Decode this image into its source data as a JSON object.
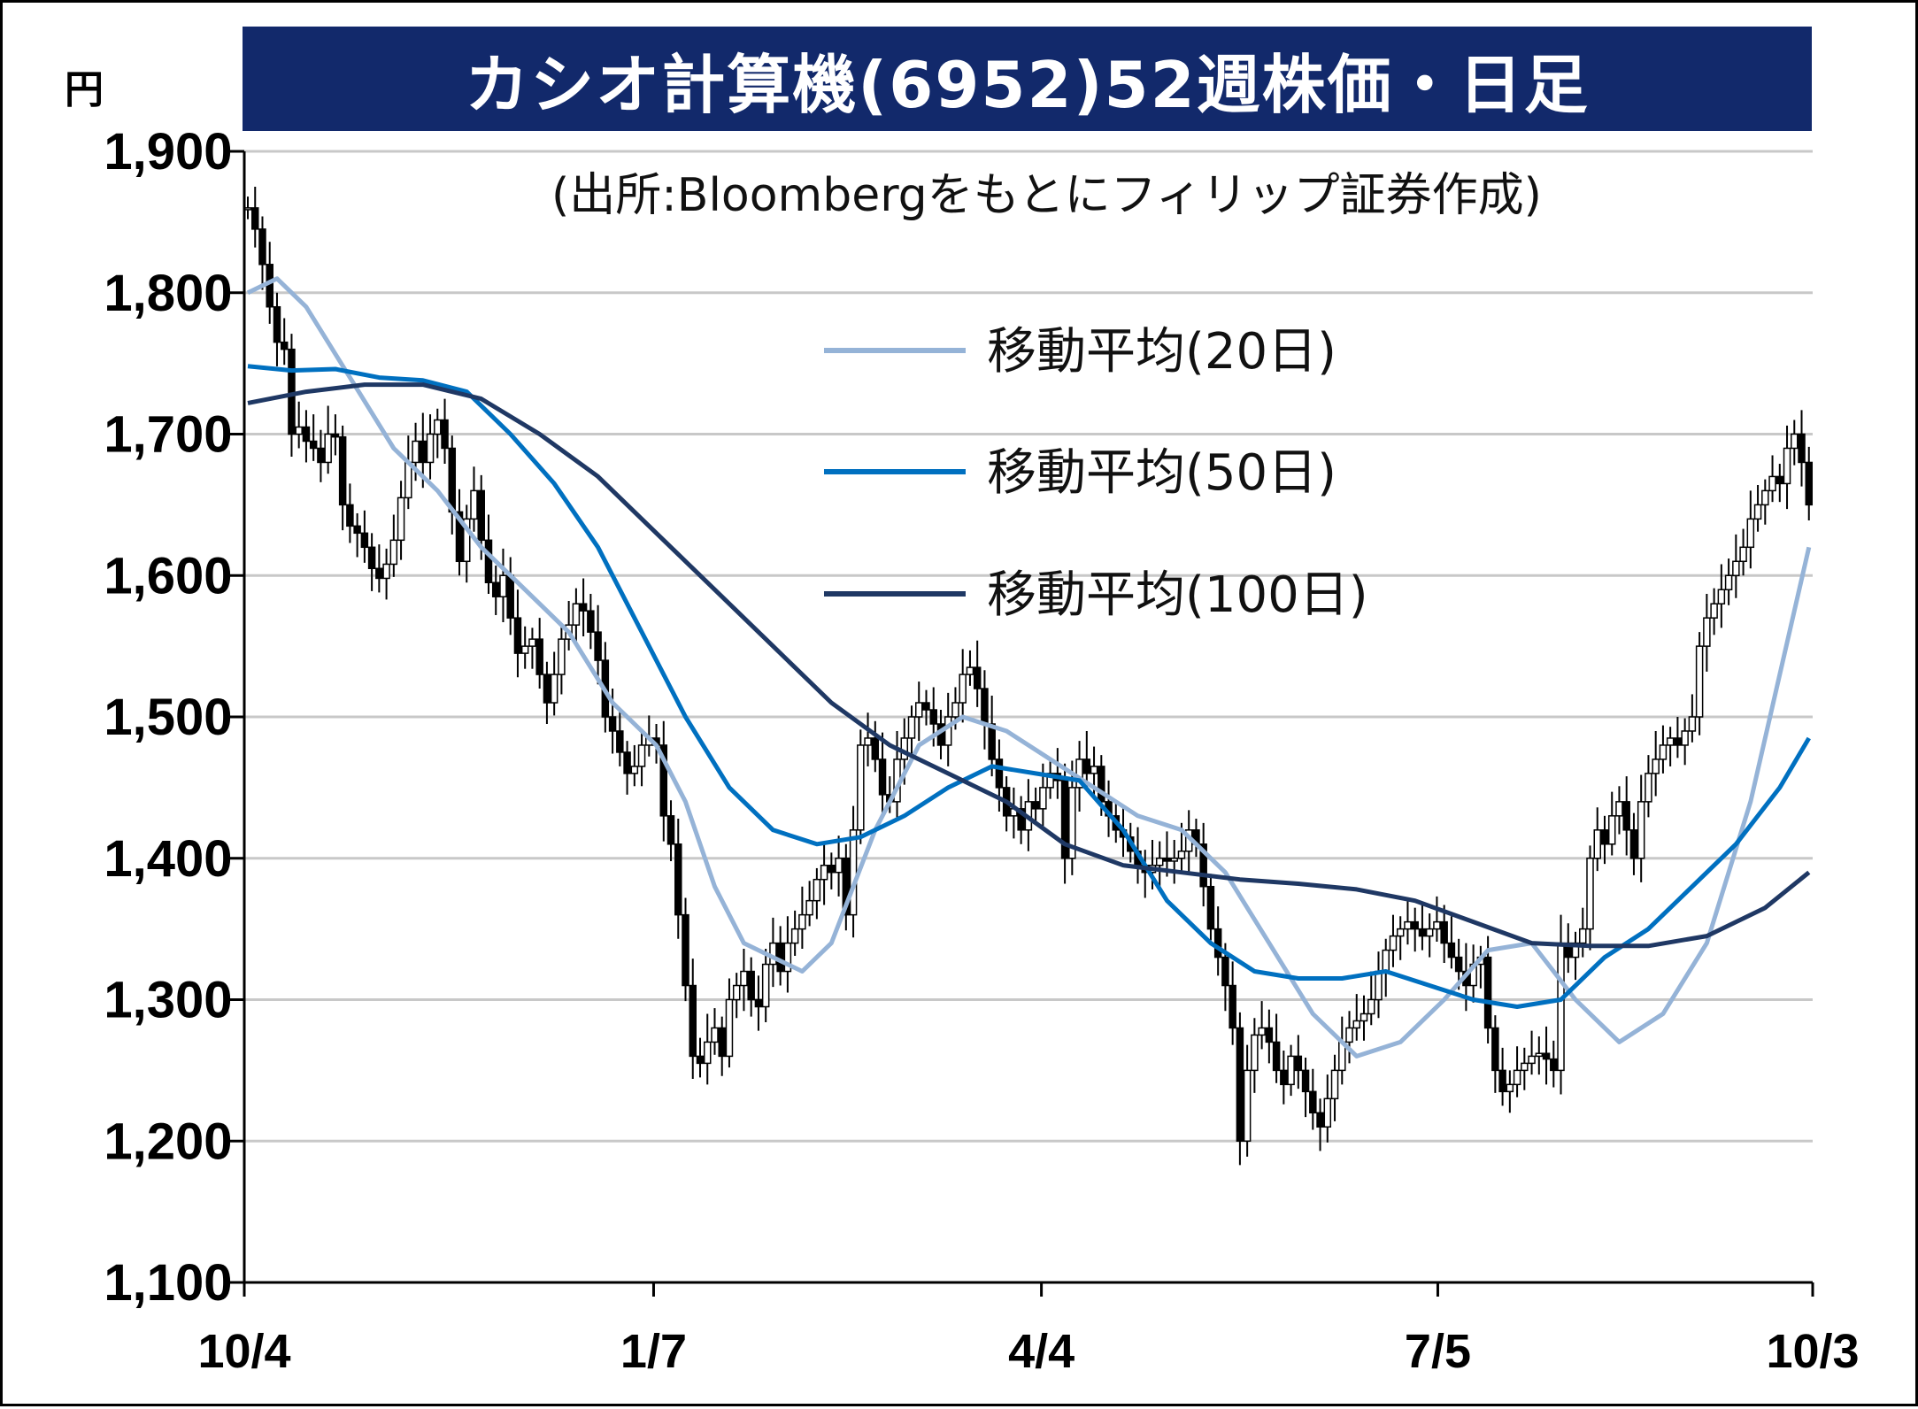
{
  "chart_data": {
    "type": "line",
    "title": "カシオ計算機(6952)52週株価・日足",
    "subtitle": "(出所:Bloombergをもとにフィリップ証券作成)",
    "unit": "円",
    "ylim": [
      1100,
      1900
    ],
    "yticks": [
      "1,100",
      "1,200",
      "1,300",
      "1,400",
      "1,500",
      "1,600",
      "1,700",
      "1,800",
      "1,900"
    ],
    "ytick_values": [
      1100,
      1200,
      1300,
      1400,
      1500,
      1600,
      1700,
      1800,
      1900
    ],
    "xticks": [
      "10/4",
      "1/7",
      "4/4",
      "7/5",
      "10/3"
    ],
    "xtick_days": [
      0,
      95,
      185,
      277,
      364
    ],
    "grid": true,
    "legend_placement": "top-center",
    "candles_close_approx": [
      [
        0,
        1860
      ],
      [
        1,
        1845
      ],
      [
        2,
        1820
      ],
      [
        3,
        1790
      ],
      [
        4,
        1765
      ],
      [
        5,
        1760
      ],
      [
        6,
        1700
      ],
      [
        7,
        1705
      ],
      [
        8,
        1695
      ],
      [
        9,
        1690
      ],
      [
        10,
        1680
      ],
      [
        11,
        1700
      ],
      [
        12,
        1698
      ],
      [
        13,
        1650
      ],
      [
        14,
        1635
      ],
      [
        15,
        1630
      ],
      [
        16,
        1620
      ],
      [
        17,
        1605
      ],
      [
        18,
        1598
      ],
      [
        19,
        1608
      ],
      [
        20,
        1625
      ],
      [
        21,
        1655
      ],
      [
        22,
        1680
      ],
      [
        23,
        1695
      ],
      [
        24,
        1680
      ],
      [
        25,
        1700
      ],
      [
        26,
        1710
      ],
      [
        27,
        1690
      ],
      [
        28,
        1645
      ],
      [
        29,
        1610
      ],
      [
        30,
        1640
      ],
      [
        31,
        1660
      ],
      [
        32,
        1625
      ],
      [
        33,
        1595
      ],
      [
        34,
        1585
      ],
      [
        35,
        1600
      ],
      [
        36,
        1570
      ],
      [
        37,
        1545
      ],
      [
        38,
        1550
      ],
      [
        39,
        1555
      ],
      [
        40,
        1530
      ],
      [
        41,
        1510
      ],
      [
        42,
        1530
      ],
      [
        43,
        1555
      ],
      [
        44,
        1565
      ],
      [
        45,
        1580
      ],
      [
        46,
        1575
      ],
      [
        47,
        1560
      ],
      [
        48,
        1540
      ],
      [
        49,
        1500
      ],
      [
        50,
        1490
      ],
      [
        51,
        1475
      ],
      [
        52,
        1460
      ],
      [
        53,
        1465
      ],
      [
        54,
        1480
      ],
      [
        55,
        1485
      ],
      [
        56,
        1480
      ],
      [
        57,
        1430
      ],
      [
        58,
        1410
      ],
      [
        59,
        1360
      ],
      [
        60,
        1310
      ],
      [
        61,
        1260
      ],
      [
        62,
        1255
      ],
      [
        63,
        1270
      ],
      [
        64,
        1280
      ],
      [
        65,
        1260
      ],
      [
        66,
        1300
      ],
      [
        67,
        1310
      ],
      [
        68,
        1320
      ],
      [
        69,
        1300
      ],
      [
        70,
        1295
      ],
      [
        71,
        1325
      ],
      [
        72,
        1340
      ],
      [
        73,
        1320
      ],
      [
        74,
        1340
      ],
      [
        75,
        1350
      ],
      [
        76,
        1360
      ],
      [
        77,
        1370
      ],
      [
        78,
        1385
      ],
      [
        79,
        1395
      ],
      [
        80,
        1390
      ],
      [
        81,
        1400
      ],
      [
        82,
        1360
      ],
      [
        83,
        1420
      ],
      [
        84,
        1480
      ],
      [
        85,
        1485
      ],
      [
        86,
        1470
      ],
      [
        87,
        1445
      ],
      [
        88,
        1440
      ],
      [
        89,
        1470
      ],
      [
        90,
        1485
      ],
      [
        91,
        1500
      ],
      [
        92,
        1510
      ],
      [
        93,
        1505
      ],
      [
        94,
        1495
      ],
      [
        95,
        1480
      ],
      [
        96,
        1500
      ],
      [
        97,
        1510
      ],
      [
        98,
        1530
      ],
      [
        99,
        1535
      ],
      [
        100,
        1520
      ],
      [
        101,
        1495
      ],
      [
        102,
        1470
      ],
      [
        103,
        1450
      ],
      [
        104,
        1430
      ],
      [
        105,
        1435
      ],
      [
        106,
        1420
      ],
      [
        107,
        1440
      ],
      [
        108,
        1435
      ],
      [
        109,
        1450
      ],
      [
        110,
        1460
      ],
      [
        111,
        1455
      ],
      [
        112,
        1400
      ],
      [
        113,
        1450
      ],
      [
        114,
        1470
      ],
      [
        115,
        1460
      ],
      [
        116,
        1465
      ],
      [
        117,
        1440
      ],
      [
        118,
        1430
      ],
      [
        119,
        1420
      ],
      [
        120,
        1415
      ],
      [
        121,
        1405
      ],
      [
        122,
        1395
      ],
      [
        123,
        1390
      ],
      [
        124,
        1395
      ],
      [
        125,
        1400
      ],
      [
        126,
        1398
      ],
      [
        127,
        1400
      ],
      [
        128,
        1405
      ],
      [
        129,
        1420
      ],
      [
        130,
        1410
      ],
      [
        131,
        1380
      ],
      [
        132,
        1350
      ],
      [
        133,
        1330
      ],
      [
        134,
        1310
      ],
      [
        135,
        1280
      ],
      [
        136,
        1200
      ],
      [
        137,
        1250
      ],
      [
        138,
        1275
      ],
      [
        139,
        1280
      ],
      [
        140,
        1270
      ],
      [
        141,
        1250
      ],
      [
        142,
        1240
      ],
      [
        143,
        1260
      ],
      [
        144,
        1250
      ],
      [
        145,
        1235
      ],
      [
        146,
        1220
      ],
      [
        147,
        1210
      ],
      [
        148,
        1230
      ],
      [
        149,
        1250
      ],
      [
        150,
        1270
      ],
      [
        151,
        1280
      ],
      [
        152,
        1285
      ],
      [
        153,
        1290
      ],
      [
        154,
        1300
      ],
      [
        155,
        1320
      ],
      [
        156,
        1335
      ],
      [
        157,
        1345
      ],
      [
        158,
        1350
      ],
      [
        159,
        1355
      ],
      [
        160,
        1350
      ],
      [
        161,
        1345
      ],
      [
        162,
        1350
      ],
      [
        163,
        1355
      ],
      [
        164,
        1340
      ],
      [
        165,
        1330
      ],
      [
        166,
        1320
      ],
      [
        167,
        1310
      ],
      [
        168,
        1325
      ],
      [
        169,
        1330
      ],
      [
        170,
        1280
      ],
      [
        171,
        1250
      ],
      [
        172,
        1235
      ],
      [
        173,
        1240
      ],
      [
        174,
        1250
      ],
      [
        175,
        1255
      ],
      [
        176,
        1260
      ],
      [
        177,
        1262
      ],
      [
        178,
        1258
      ],
      [
        179,
        1250
      ],
      [
        180,
        1340
      ],
      [
        181,
        1330
      ],
      [
        182,
        1340
      ],
      [
        183,
        1350
      ],
      [
        184,
        1400
      ],
      [
        185,
        1420
      ],
      [
        186,
        1410
      ],
      [
        187,
        1430
      ],
      [
        188,
        1440
      ],
      [
        189,
        1420
      ],
      [
        190,
        1400
      ],
      [
        191,
        1440
      ],
      [
        192,
        1460
      ],
      [
        193,
        1470
      ],
      [
        194,
        1480
      ],
      [
        195,
        1485
      ],
      [
        196,
        1480
      ],
      [
        197,
        1490
      ],
      [
        198,
        1500
      ],
      [
        199,
        1550
      ],
      [
        200,
        1570
      ],
      [
        201,
        1580
      ],
      [
        202,
        1590
      ],
      [
        203,
        1600
      ],
      [
        204,
        1610
      ],
      [
        205,
        1620
      ],
      [
        206,
        1640
      ],
      [
        207,
        1650
      ],
      [
        208,
        1660
      ],
      [
        209,
        1670
      ],
      [
        210,
        1665
      ],
      [
        211,
        1690
      ],
      [
        212,
        1700
      ],
      [
        213,
        1680
      ],
      [
        214,
        1650
      ]
    ],
    "series": [
      {
        "name": "移動平均(20日)",
        "color": "#95b3d7",
        "x": [
          0,
          4,
          8,
          14,
          20,
          26,
          32,
          38,
          44,
          50,
          56,
          60,
          64,
          68,
          72,
          76,
          80,
          86,
          92,
          98,
          104,
          110,
          116,
          122,
          128,
          134,
          140,
          146,
          152,
          158,
          164,
          170,
          176,
          182,
          188,
          194,
          200,
          206,
          214
        ],
        "values": [
          1800,
          1810,
          1790,
          1740,
          1690,
          1660,
          1620,
          1590,
          1560,
          1510,
          1480,
          1440,
          1380,
          1340,
          1330,
          1320,
          1340,
          1420,
          1480,
          1500,
          1490,
          1470,
          1450,
          1430,
          1420,
          1390,
          1340,
          1290,
          1260,
          1270,
          1300,
          1335,
          1340,
          1300,
          1270,
          1290,
          1340,
          1440,
          1620
        ]
      },
      {
        "name": "移動平均(50日)",
        "color": "#0070c0",
        "x": [
          0,
          6,
          12,
          18,
          24,
          30,
          36,
          42,
          48,
          54,
          60,
          66,
          72,
          78,
          84,
          90,
          96,
          102,
          108,
          114,
          120,
          126,
          132,
          138,
          144,
          150,
          156,
          162,
          168,
          174,
          180,
          186,
          192,
          198,
          204,
          210,
          214
        ],
        "values": [
          1748,
          1745,
          1746,
          1740,
          1738,
          1730,
          1700,
          1665,
          1620,
          1560,
          1500,
          1450,
          1420,
          1410,
          1415,
          1430,
          1450,
          1465,
          1460,
          1455,
          1420,
          1370,
          1340,
          1320,
          1315,
          1315,
          1320,
          1310,
          1300,
          1295,
          1300,
          1330,
          1350,
          1380,
          1410,
          1450,
          1485
        ]
      },
      {
        "name": "移動平均(100日)",
        "color": "#1f3864",
        "x": [
          0,
          8,
          16,
          24,
          32,
          40,
          48,
          56,
          64,
          72,
          80,
          88,
          96,
          104,
          112,
          120,
          128,
          136,
          144,
          152,
          160,
          168,
          176,
          184,
          192,
          200,
          208,
          214
        ],
        "values": [
          1722,
          1730,
          1735,
          1735,
          1725,
          1700,
          1670,
          1630,
          1590,
          1550,
          1510,
          1480,
          1460,
          1440,
          1410,
          1395,
          1390,
          1385,
          1382,
          1378,
          1370,
          1355,
          1340,
          1338,
          1338,
          1345,
          1365,
          1390
        ]
      }
    ]
  }
}
